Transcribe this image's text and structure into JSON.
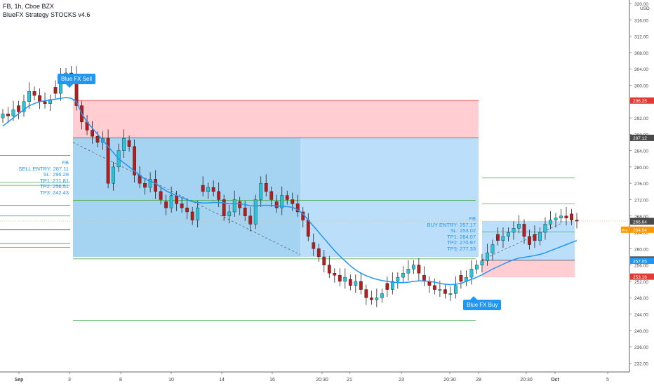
{
  "legend": {
    "symbol": "FB, 1h, Cboe BZX",
    "indicator": "BlueFX Strategy STOCKS v4.6"
  },
  "colors": {
    "up": "#26c6da",
    "down": "#b71c1c",
    "ema": "#2196f3",
    "stop_zone": "#ffcdd2",
    "target_zone": "#bbdefb",
    "green_line": "#4caf50",
    "red_line": "#e53935",
    "cur_line": "#ffb74d"
  },
  "signals": {
    "sell_label": "Blue FX Sell",
    "buy_label": "Blue FX Buy"
  },
  "sell_info": [
    "FB",
    "SELL ENTRY: 287.11",
    "SL: 296.28",
    "TP1: 271.81",
    "TP2: 256.51",
    "TP3: 242.43"
  ],
  "buy_info": [
    "FB",
    "BUY ENTRY: 257.17",
    "SL: 253.02",
    "TP1: 264.07",
    "TP2: 270.97",
    "TP3: 277.33"
  ],
  "chart_data": {
    "type": "candlestick",
    "y_axis_unit": "USD",
    "ylim": [
      230,
      320
    ],
    "y_ticks": [
      232,
      236,
      240,
      244,
      248,
      252,
      256,
      260,
      264,
      268,
      272,
      276,
      280,
      284,
      288,
      292,
      296,
      300,
      304,
      308,
      312,
      316,
      320
    ],
    "x_ticks": [
      "Sep",
      "3",
      "8",
      "10",
      "14",
      "16",
      "20:30",
      "21",
      "23",
      "20:30",
      "28",
      "20:30",
      "Oct",
      "5"
    ],
    "price_tags": [
      {
        "value": 296.25,
        "text": "296.25",
        "bg": "#e53935",
        "fg": "#ffffff"
      },
      {
        "value": 287.12,
        "text": "287.12",
        "bg": "#4a4a4a",
        "fg": "#ffffff"
      },
      {
        "value": 266.75,
        "text": "266.75",
        "bg": "#131722",
        "fg": "#ffffff"
      },
      {
        "value": 266.64,
        "text": "266.64",
        "bg": "#4a4a4a",
        "fg": "#ffffff"
      },
      {
        "value": 264.64,
        "text": "264.64",
        "bg": "#ff9800",
        "fg": "#ffffff",
        "prefix": "Pre"
      },
      {
        "value": 257.34,
        "text": "257.34",
        "bg": "#4a4a4a",
        "fg": "#ffffff"
      },
      {
        "value": 257.05,
        "text": "257.05",
        "bg": "#2196f3",
        "fg": "#ffffff"
      },
      {
        "value": 253.16,
        "text": "253.16",
        "bg": "#e53935",
        "fg": "#ffffff"
      }
    ],
    "sell_trade": {
      "entry": 287.11,
      "sl": 296.28,
      "tp1": 271.81,
      "tp2": 256.51,
      "tp3": 242.43
    },
    "buy_trade": {
      "entry": 257.17,
      "sl": 253.02,
      "tp1": 264.07,
      "tp2": 270.97,
      "tp3": 277.33
    },
    "close_series": [
      293,
      292.5,
      294,
      293.5,
      296,
      298.5,
      297.5,
      296,
      295.5,
      296.5,
      298,
      302,
      303,
      302.5,
      295,
      291,
      289,
      287.5,
      286,
      287,
      276,
      280,
      284,
      287,
      285,
      278,
      276,
      275,
      277,
      274,
      272,
      270,
      273,
      271,
      270,
      269,
      267,
      270,
      274,
      275,
      274,
      272,
      268,
      269,
      272,
      270,
      268,
      266,
      272,
      276,
      274,
      272,
      270,
      273,
      272,
      271,
      269,
      267,
      263,
      260,
      258,
      256,
      254,
      253.5,
      252,
      253,
      251,
      252,
      250,
      248,
      247.5,
      248,
      249,
      250,
      252,
      253,
      254,
      255,
      256,
      254,
      252,
      251,
      250,
      250,
      249,
      249,
      251,
      252,
      253,
      255,
      256,
      257,
      259,
      261,
      262,
      263,
      264,
      265,
      266,
      263,
      261,
      262,
      264,
      266,
      267,
      267.5,
      268,
      267.5,
      267,
      266.75
    ],
    "ema_series": [
      290,
      291,
      292,
      293,
      294,
      295,
      295.5,
      296,
      296.2,
      296.4,
      296.6,
      296.8,
      297,
      296.8,
      296,
      293,
      291,
      289.5,
      288,
      286.5,
      285,
      283.5,
      282,
      281,
      280,
      279,
      278,
      277,
      276.5,
      276,
      275,
      274.2,
      273.5,
      273,
      272.5,
      272,
      271.5,
      271.3,
      271.2,
      271.2,
      271.3,
      271.3,
      271.2,
      271,
      271,
      271,
      270.8,
      270.5,
      270.5,
      270.6,
      270.6,
      270.6,
      270.5,
      270.4,
      270.3,
      270.1,
      269.5,
      268.5,
      267,
      265.5,
      264,
      262.5,
      261,
      259.5,
      258.2,
      257,
      255.8,
      254.8,
      254,
      253.4,
      252.9,
      252.5,
      252.2,
      252,
      251.8,
      251.7,
      251.7,
      251.8,
      252,
      252.1,
      252.1,
      252,
      251.8,
      251.5,
      251.3,
      251.2,
      251.3,
      251.5,
      252,
      252.5,
      253,
      253.6,
      254.3,
      255,
      255.6,
      256.2,
      256.8,
      257.3,
      257.7,
      257.9,
      258.1,
      258.3,
      258.6,
      259,
      259.5,
      260,
      260.5,
      261,
      261.5,
      262
    ]
  }
}
